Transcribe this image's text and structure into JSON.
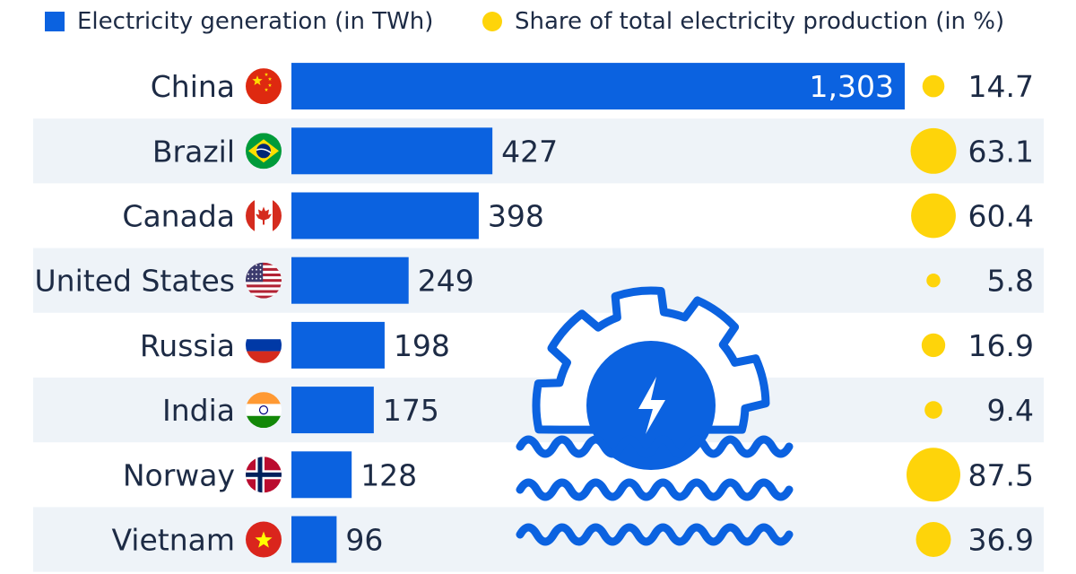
{
  "legend": {
    "generation_label": "Electricity generation (in TWh)",
    "share_label": "Share of total electricity production (in %)"
  },
  "colors": {
    "bar": "#0b62e0",
    "dot": "#fed40a",
    "stripe": "#eef3f8",
    "text": "#1d2b45",
    "icon": "#0b62e0"
  },
  "chart_data": {
    "type": "bar",
    "orientation": "horizontal",
    "categories": [
      "China",
      "Brazil",
      "Canada",
      "United States",
      "Russia",
      "India",
      "Norway",
      "Vietnam"
    ],
    "series": [
      {
        "name": "Electricity generation (in TWh)",
        "values": [
          1303,
          427,
          398,
          249,
          198,
          175,
          128,
          96
        ],
        "labels": [
          "1,303",
          "427",
          "398",
          "249",
          "198",
          "175",
          "128",
          "96"
        ]
      },
      {
        "name": "Share of total electricity production (in %)",
        "values": [
          14.7,
          63.1,
          60.4,
          5.8,
          16.9,
          9.4,
          87.5,
          36.9
        ],
        "labels": [
          "14.7",
          "63.1",
          "60.4",
          "5.8",
          "16.9",
          "9.4",
          "87.5",
          "36.9"
        ]
      }
    ],
    "flags": [
      "china-flag-icon",
      "brazil-flag-icon",
      "canada-flag-icon",
      "usa-flag-icon",
      "russia-flag-icon",
      "india-flag-icon",
      "norway-flag-icon",
      "vietnam-flag-icon"
    ],
    "xlim": [
      0,
      1303
    ],
    "grid": false,
    "legend_position": "top-left",
    "decoration": "hydropower-turbine-icon"
  }
}
